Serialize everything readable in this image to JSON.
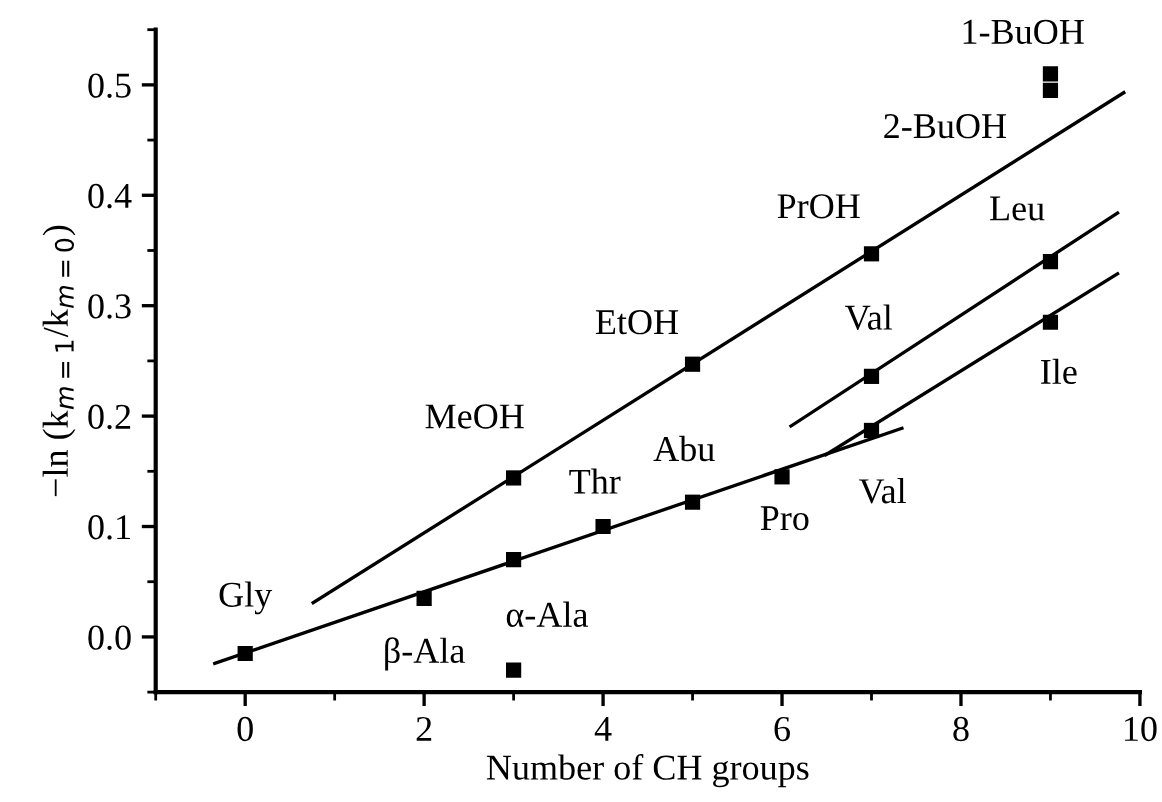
{
  "chart_data": {
    "type": "scatter",
    "xlabel": "Number of CH groups",
    "ylabel": "−ln (k$_{m=1}$/k$_{m=0}$)",
    "xlim": [
      -1,
      10
    ],
    "xticks": [
      0,
      2,
      4,
      6,
      8,
      10
    ],
    "ylim": [
      -0.05,
      0.55
    ],
    "yticks": [
      {
        "value": 0,
        "label": "0.0"
      },
      0.1,
      0.2,
      0.3,
      0.4,
      0.5
    ],
    "grid": false,
    "legend": false,
    "series": [
      {
        "marker": "square",
        "color": "#000000",
        "x": [
          0,
          2,
          3,
          3,
          4,
          5,
          6,
          7,
          9,
          7,
          9,
          3,
          5,
          7,
          9,
          9
        ],
        "values": [
          -0.015,
          0.035,
          0.07,
          -0.03,
          0.1,
          0.122,
          0.145,
          0.187,
          0.285,
          0.236,
          0.34,
          0.144,
          0.247,
          0.347,
          0.51,
          0.495
        ]
      },
      {
        "type": "line",
        "marker": "none",
        "line_style": "solid",
        "color": "#000000",
        "x": [
          0.76,
          9.82
        ],
        "values": [
          0.031,
          0.493
        ]
      },
      {
        "type": "line",
        "marker": "none",
        "line_style": "solid",
        "color": "#000000",
        "x": [
          -0.34,
          7.34
        ],
        "values": [
          -0.024,
          0.189
        ]
      },
      {
        "type": "line",
        "marker": "none",
        "line_style": "solid",
        "color": "#000000",
        "x": [
          6.1,
          9.75
        ],
        "values": [
          0.191,
          0.384
        ]
      },
      {
        "type": "line",
        "marker": "none",
        "line_style": "solid",
        "color": "#000000",
        "x": [
          6.49,
          9.75
        ],
        "values": [
          0.165,
          0.329
        ]
      }
    ],
    "annotations": [
      {
        "text": "Gly",
        "x": 0,
        "y": -0.015
      },
      {
        "text": "β-Ala",
        "x": 2,
        "y": 0.035
      },
      {
        "text": "α-Ala",
        "x": 3,
        "y": 0.07
      },
      {
        "text": "Thr",
        "x": 4,
        "y": 0.1
      },
      {
        "text": "Abu",
        "x": 5,
        "y": 0.122
      },
      {
        "text": "Pro",
        "x": 6,
        "y": 0.145
      },
      {
        "text": "Val",
        "x": 7,
        "y": 0.187
      },
      {
        "text": "Ile",
        "x": 9,
        "y": 0.285
      },
      {
        "text": "Val",
        "x": 7,
        "y": 0.236
      },
      {
        "text": "Leu",
        "x": 9,
        "y": 0.34
      },
      {
        "text": "MeOH",
        "x": 3,
        "y": 0.144
      },
      {
        "text": "EtOH",
        "x": 5,
        "y": 0.247
      },
      {
        "text": "PrOH",
        "x": 7,
        "y": 0.347
      },
      {
        "text": "1-BuOH",
        "x": 9,
        "y": 0.51
      },
      {
        "text": "2-BuOH",
        "x": 9,
        "y": 0.495
      }
    ]
  }
}
